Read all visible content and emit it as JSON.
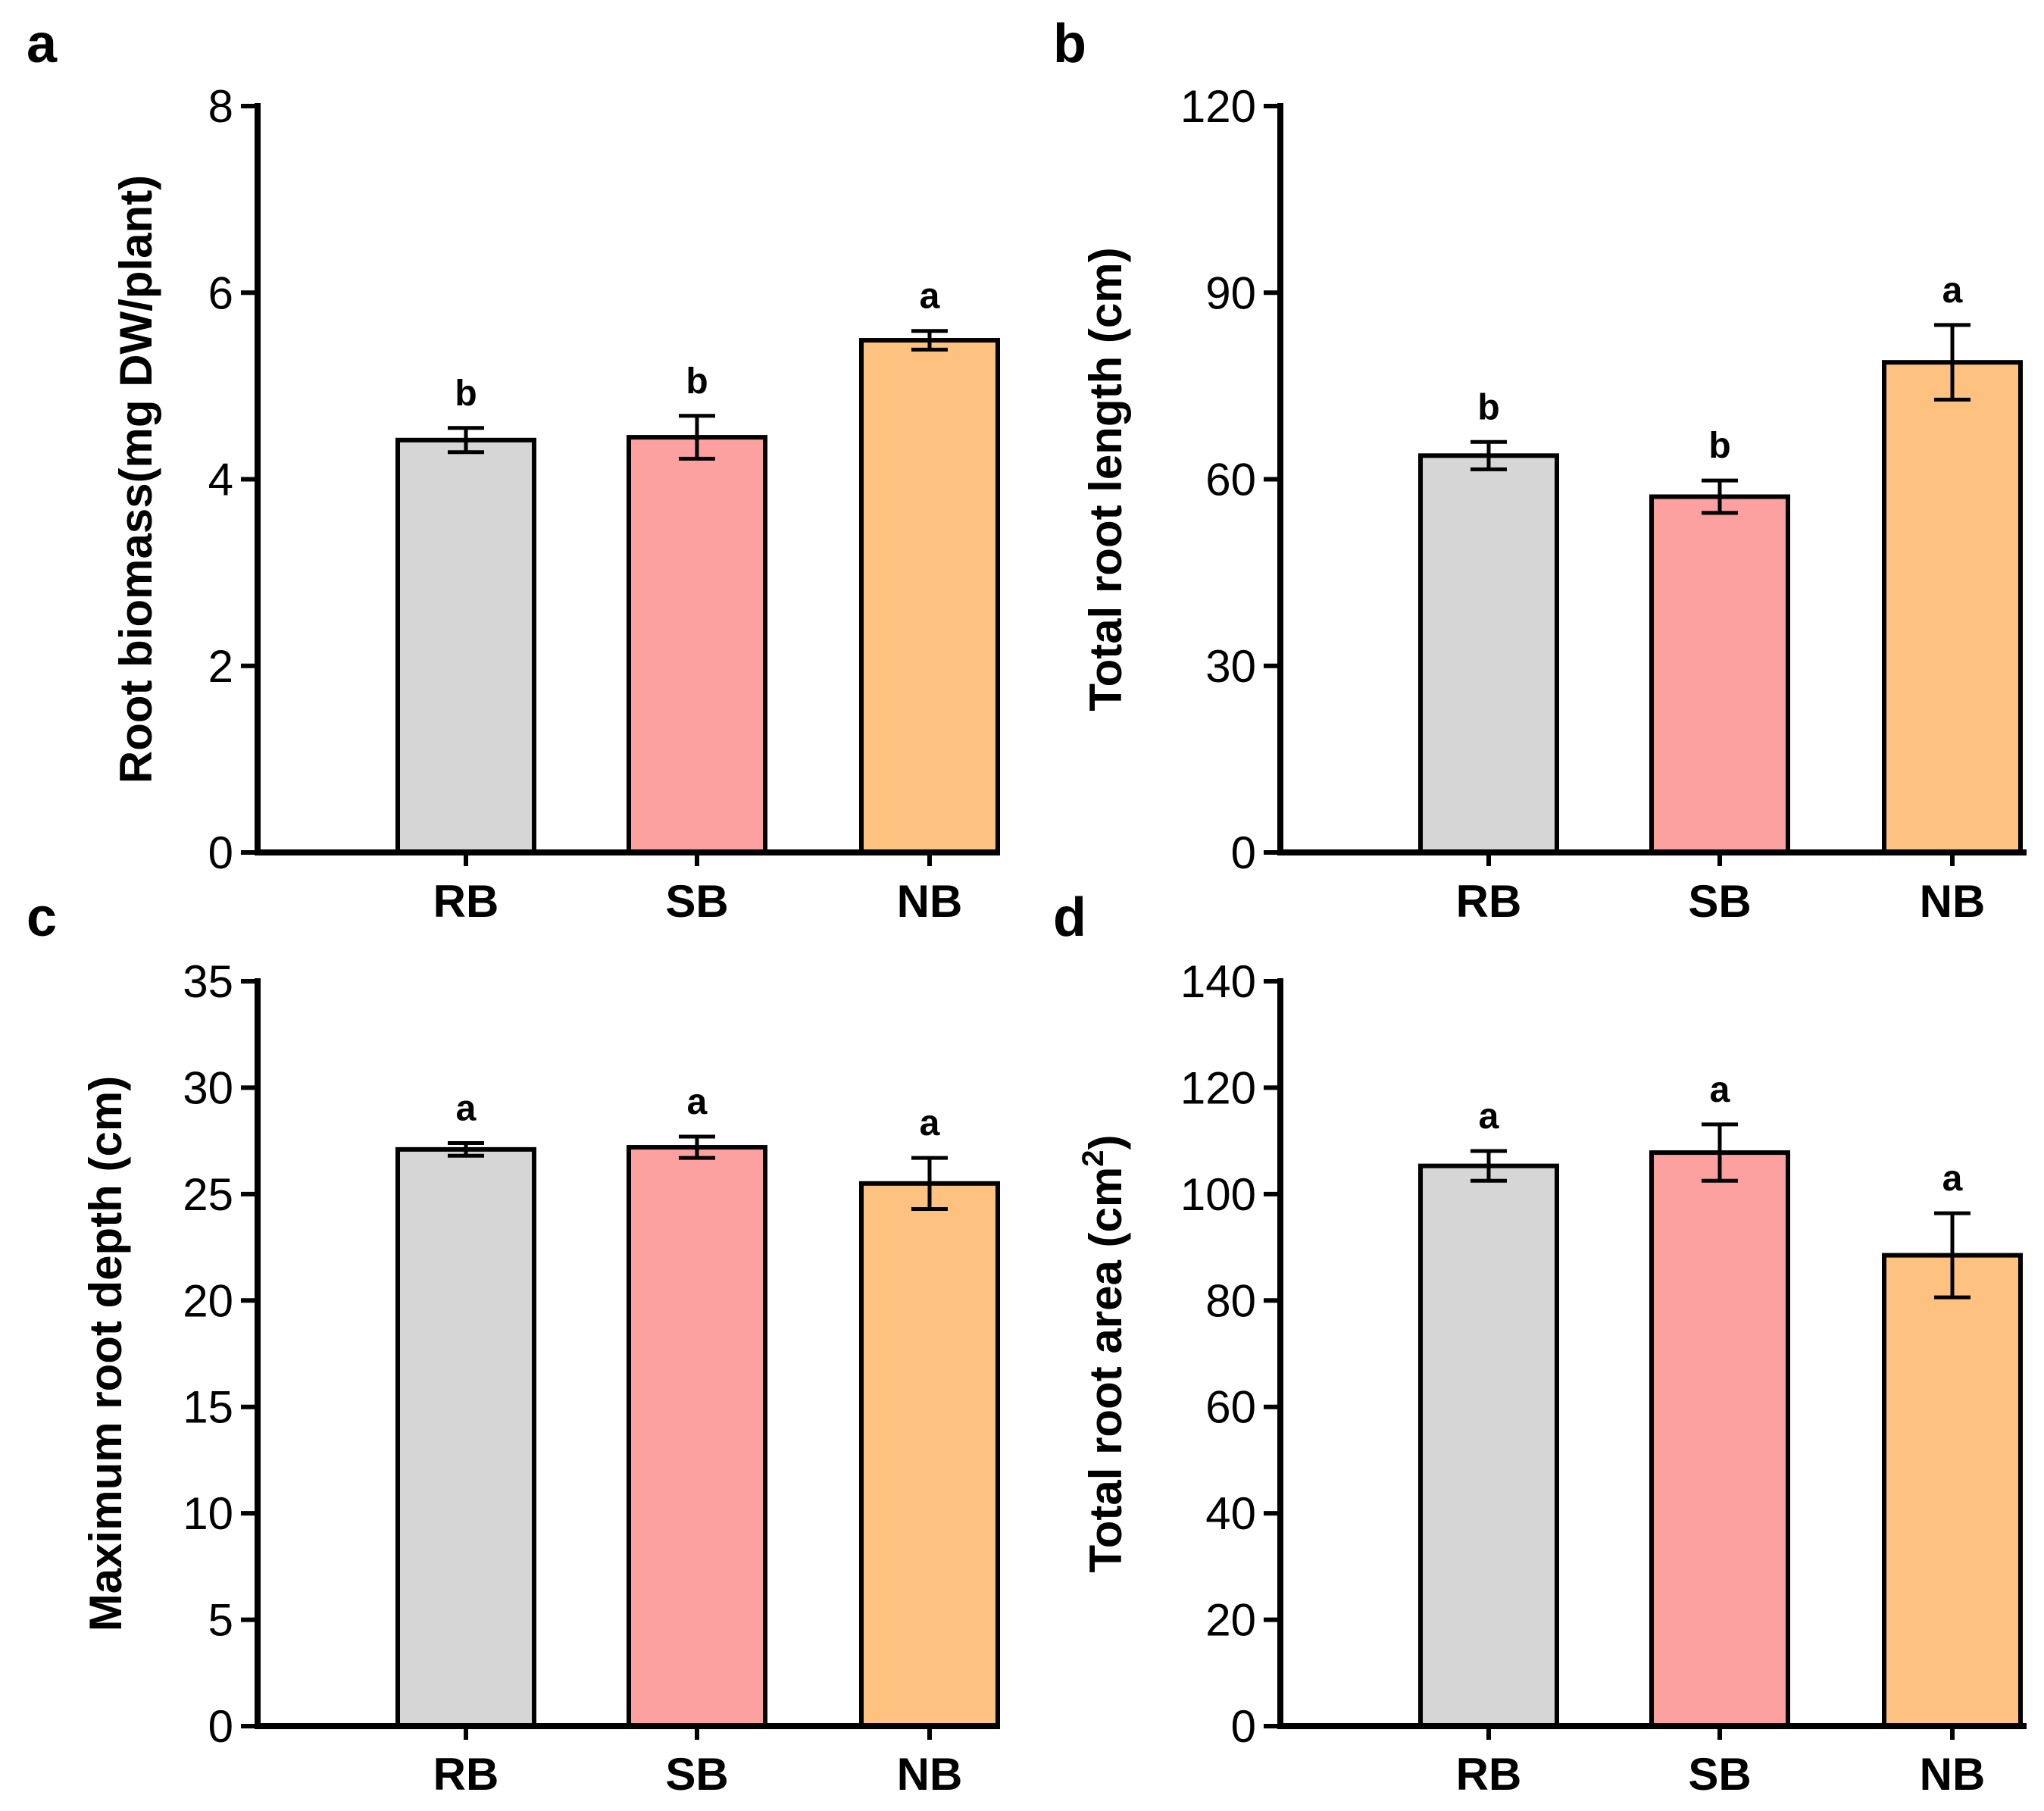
{
  "colors": {
    "RB": "#d6d6d6",
    "SB": "#fca0a0",
    "NB": "#fdc280"
  },
  "chart_data": [
    {
      "panel": "a",
      "type": "bar",
      "ylabel": "Root biomass(mg DW/plant)",
      "ylabel_sup": "",
      "ylabel_tail": "",
      "categories": [
        "RB",
        "SB",
        "NB"
      ],
      "values": [
        4.42,
        4.45,
        5.49
      ],
      "errors": [
        0.13,
        0.23,
        0.1
      ],
      "significance": [
        "b",
        "b",
        "a"
      ],
      "ylim": [
        0,
        8
      ],
      "yticks": [
        0,
        2,
        4,
        6,
        8
      ]
    },
    {
      "panel": "b",
      "type": "bar",
      "ylabel": "Total root length (cm)",
      "ylabel_sup": "",
      "ylabel_tail": "",
      "categories": [
        "RB",
        "SB",
        "NB"
      ],
      "values": [
        63.8,
        57.2,
        78.8
      ],
      "errors": [
        2.2,
        2.6,
        6.0
      ],
      "significance": [
        "b",
        "b",
        "a"
      ],
      "ylim": [
        0,
        120
      ],
      "yticks": [
        0,
        30,
        60,
        90,
        120
      ]
    },
    {
      "panel": "c",
      "type": "bar",
      "ylabel": "Maximum root depth (cm)",
      "ylabel_sup": "",
      "ylabel_tail": "",
      "categories": [
        "RB",
        "SB",
        "NB"
      ],
      "values": [
        27.1,
        27.2,
        25.5
      ],
      "errors": [
        0.3,
        0.5,
        1.2
      ],
      "significance": [
        "a",
        "a",
        "a"
      ],
      "ylim": [
        0,
        35
      ],
      "yticks": [
        0,
        5,
        10,
        15,
        20,
        25,
        30,
        35
      ]
    },
    {
      "panel": "d",
      "type": "bar",
      "ylabel": "Total root area (cm",
      "ylabel_sup": "2",
      "ylabel_tail": ")",
      "categories": [
        "RB",
        "SB",
        "NB"
      ],
      "values": [
        105.3,
        107.8,
        88.5
      ],
      "errors": [
        2.8,
        5.3,
        7.9
      ],
      "significance": [
        "a",
        "a",
        "a"
      ],
      "ylim": [
        0,
        140
      ],
      "yticks": [
        0,
        20,
        40,
        60,
        80,
        100,
        120,
        140
      ]
    }
  ]
}
